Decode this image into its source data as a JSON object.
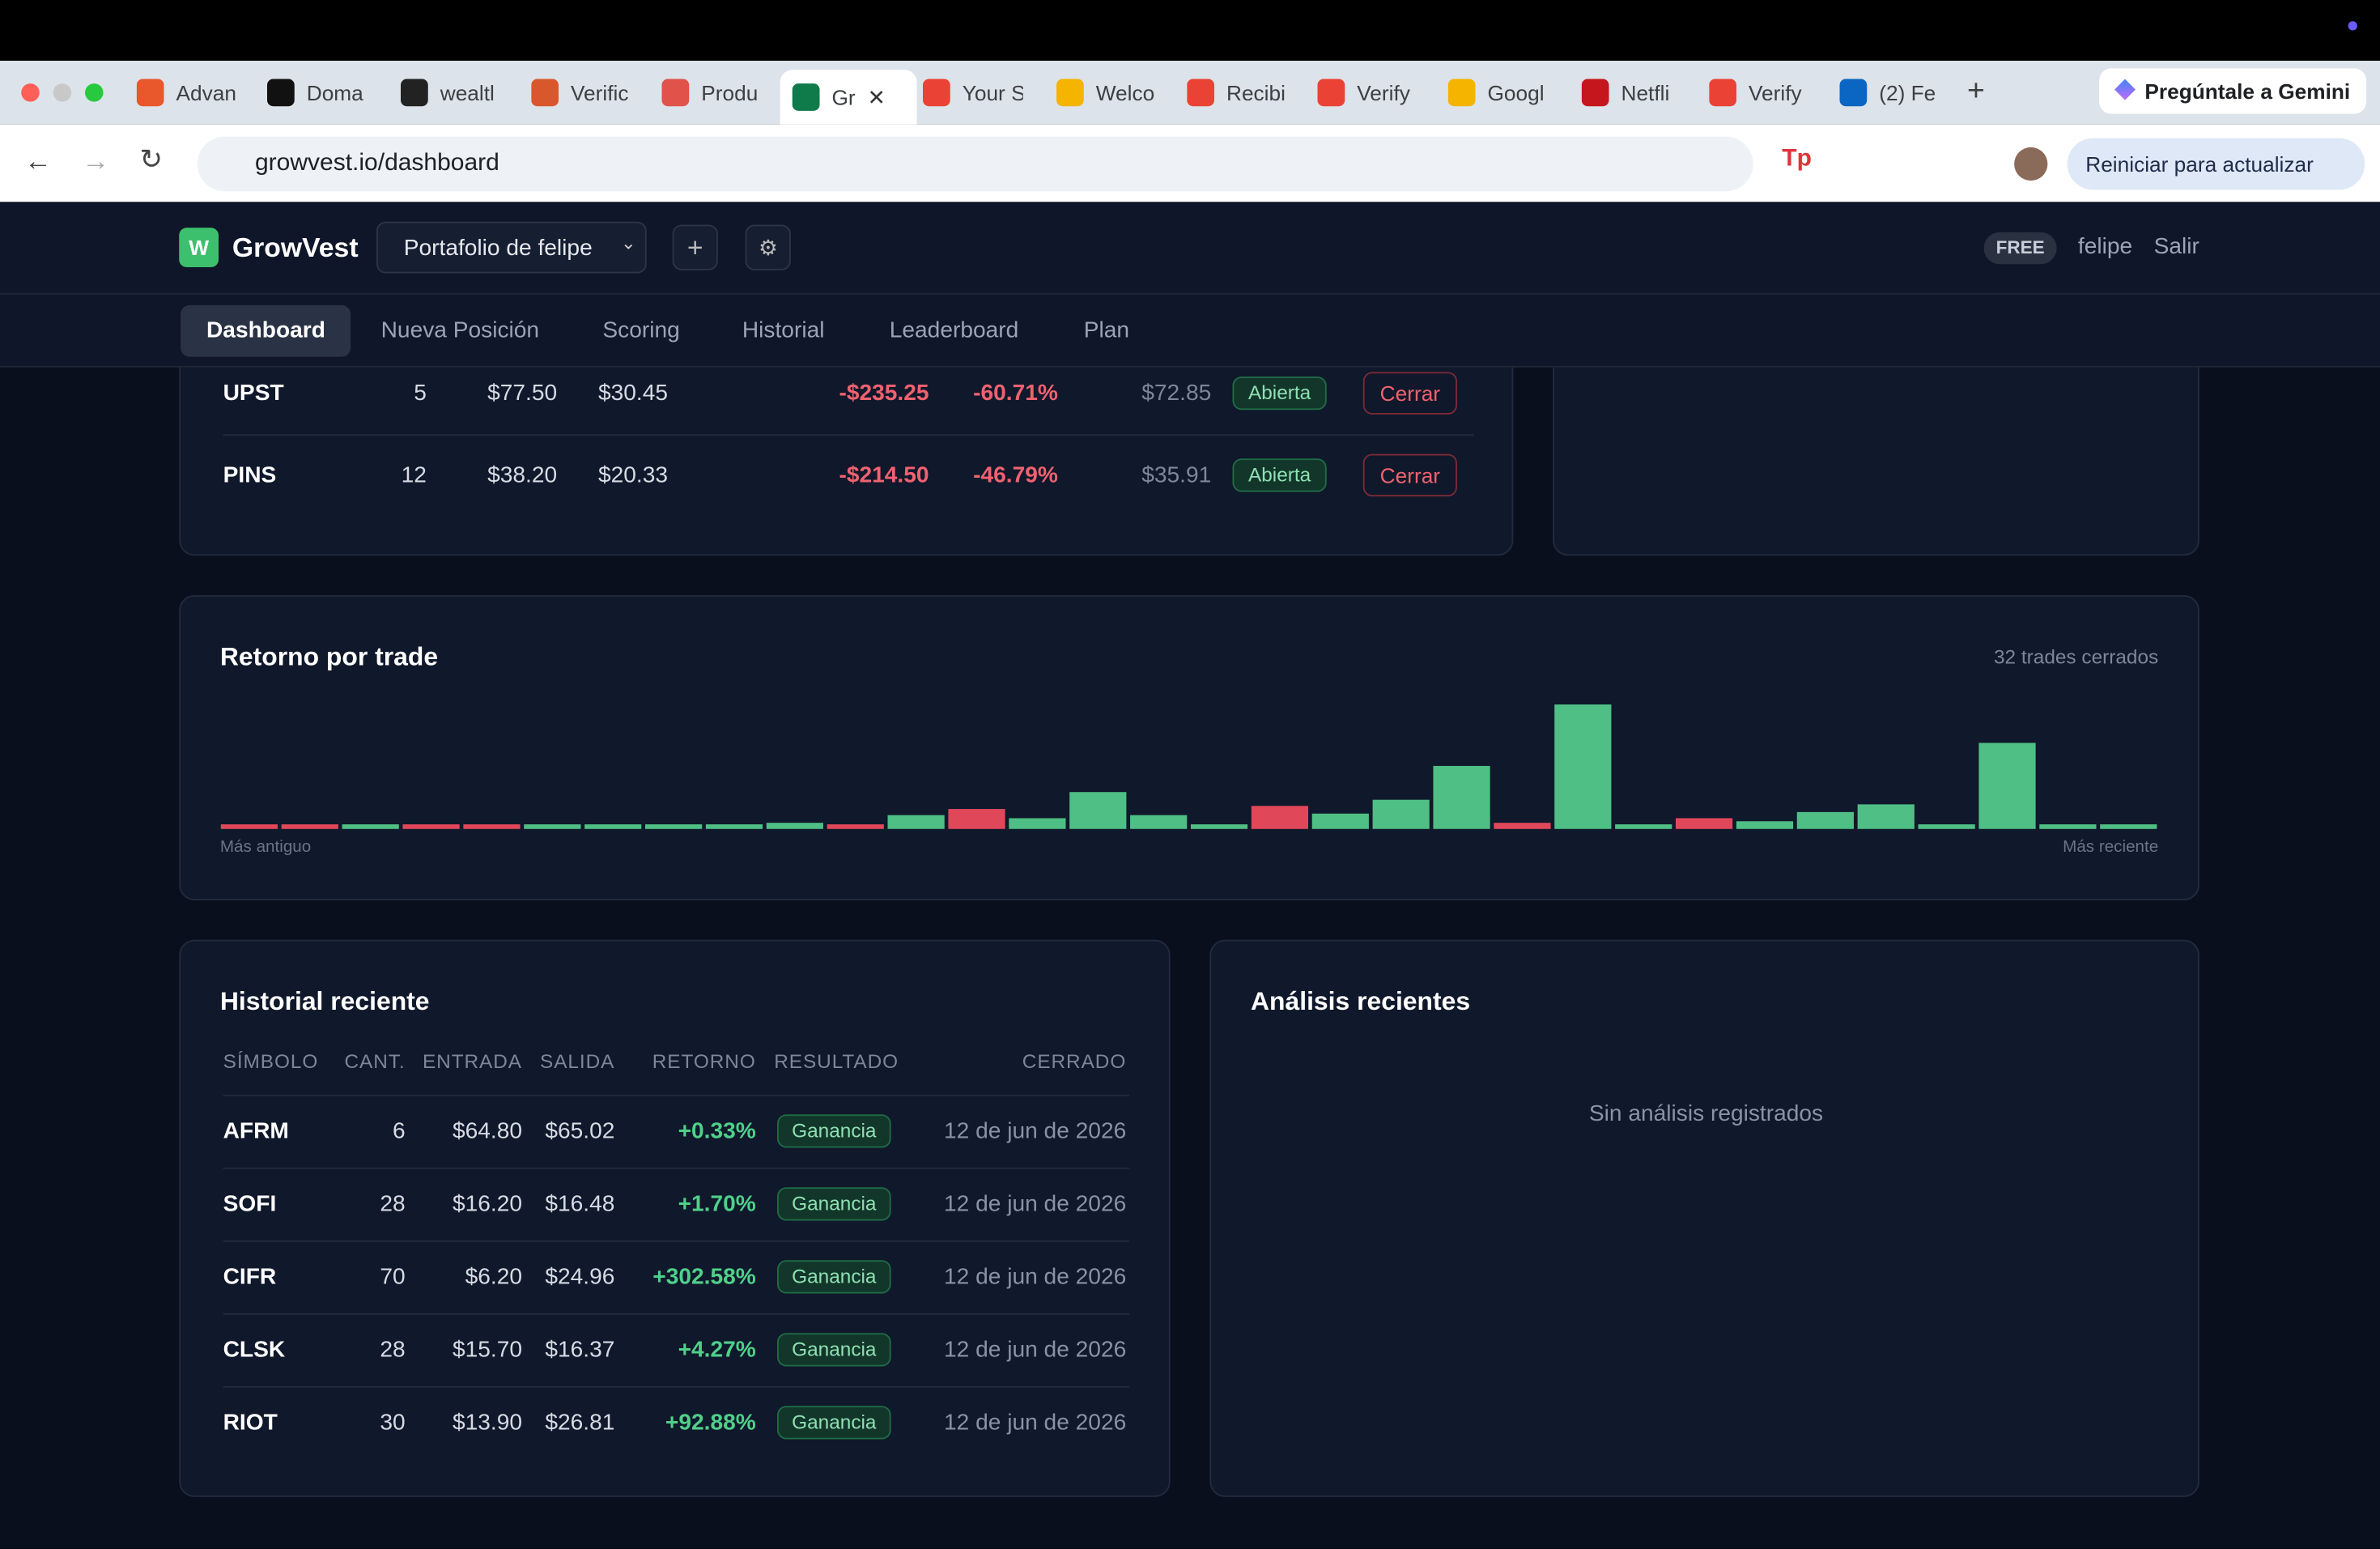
{
  "browser": {
    "tabs": [
      "Advan",
      "Doma",
      "wealtl",
      "Verific",
      "Produ",
      "Gr",
      "Your S",
      "Welco",
      "Recibi",
      "Verify",
      "Googl",
      "Netfli",
      "Verify",
      "(2) Fe"
    ],
    "url": "growvest.io/dashboard",
    "gemini": "Pregúntale a Gemini",
    "update": "Reiniciar para actualizar"
  },
  "header": {
    "logo": "W",
    "brand": "GrowVest",
    "portfolio": "Portafolio de felipe",
    "plan": "FREE",
    "user": "felipe",
    "logout": "Salir"
  },
  "nav": [
    "Dashboard",
    "Nueva Posición",
    "Scoring",
    "Historial",
    "Leaderboard",
    "Plan"
  ],
  "positions": {
    "rows": [
      [
        "UPST",
        "5",
        "$77.50",
        "$30.45",
        "-$235.25",
        "-60.71%",
        "$72.85",
        "Abierta",
        "Cerrar"
      ],
      [
        "PINS",
        "12",
        "$38.20",
        "$20.33",
        "-$214.50",
        "-46.79%",
        "$35.91",
        "Abierta",
        "Cerrar"
      ]
    ]
  },
  "chart_data": {
    "type": "bar",
    "title": "Retorno por trade",
    "note": "32 trades cerrados",
    "start_label": "Más antiguo",
    "end_label": "Más reciente",
    "values": [
      -3,
      -3,
      3,
      -3,
      -3,
      3,
      3,
      3,
      3,
      4,
      -3,
      9,
      -13,
      7,
      24,
      9,
      3,
      -15,
      10,
      19,
      41,
      -4,
      81,
      3,
      -7,
      5,
      11,
      16,
      3,
      56,
      3,
      3
    ],
    "positive_color": "#4fbf85",
    "negative_color": "#e0485a"
  },
  "history": {
    "title": "Historial reciente",
    "columns": [
      "SÍMBOLO",
      "CANT.",
      "ENTRADA",
      "SALIDA",
      "RETORNO",
      "RESULTADO",
      "CERRADO"
    ],
    "rows": [
      [
        "AFRM",
        "6",
        "$64.80",
        "$65.02",
        "+0.33%",
        "Ganancia",
        "12 de jun de 2026"
      ],
      [
        "SOFI",
        "28",
        "$16.20",
        "$16.48",
        "+1.70%",
        "Ganancia",
        "12 de jun de 2026"
      ],
      [
        "CIFR",
        "70",
        "$6.20",
        "$24.96",
        "+302.58%",
        "Ganancia",
        "12 de jun de 2026"
      ],
      [
        "CLSK",
        "28",
        "$15.70",
        "$16.37",
        "+4.27%",
        "Ganancia",
        "12 de jun de 2026"
      ],
      [
        "RIOT",
        "30",
        "$13.90",
        "$26.81",
        "+92.88%",
        "Ganancia",
        "12 de jun de 2026"
      ]
    ]
  },
  "analysis": {
    "title": "Análisis recientes",
    "empty": "Sin análisis registrados"
  }
}
